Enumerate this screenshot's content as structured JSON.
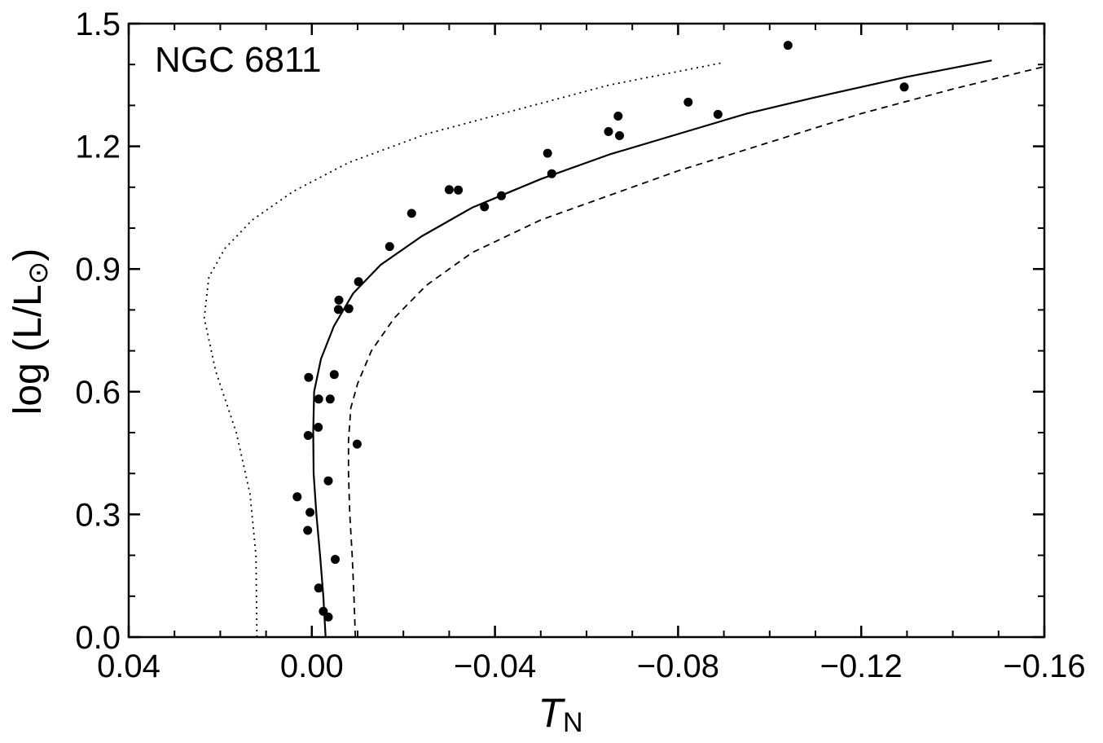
{
  "chart_data": {
    "type": "scatter",
    "panel_label": "NGC 6811",
    "xlabel": {
      "main": "T",
      "sub": "N"
    },
    "ylabel": {
      "prefix": "log (L/L",
      "suffix": ")",
      "sun_symbol": "⊙"
    },
    "xlim": [
      0.04,
      -0.16
    ],
    "ylim": [
      0.0,
      1.5
    ],
    "x_ticks": [
      {
        "value": 0.04,
        "label": "0.04"
      },
      {
        "value": 0.0,
        "label": "0.00"
      },
      {
        "value": -0.04,
        "label": "−0.04"
      },
      {
        "value": -0.08,
        "label": "−0.08"
      },
      {
        "value": -0.12,
        "label": "−0.12"
      },
      {
        "value": -0.16,
        "label": "−0.16"
      }
    ],
    "y_ticks": [
      {
        "value": 0.0,
        "label": "0.0"
      },
      {
        "value": 0.3,
        "label": "0.3"
      },
      {
        "value": 0.6,
        "label": "0.6"
      },
      {
        "value": 0.9,
        "label": "0.9"
      },
      {
        "value": 1.2,
        "label": "1.2"
      },
      {
        "value": 1.5,
        "label": "1.5"
      }
    ],
    "x_minor_step": 0.01,
    "y_minor_step": 0.1,
    "grid": false,
    "series": [
      {
        "kind": "points",
        "marker": "filled-circle",
        "color": "#000000",
        "points": [
          [
            -0.1294,
            1.345
          ],
          [
            -0.104,
            1.447
          ],
          [
            -0.0887,
            1.278
          ],
          [
            -0.0822,
            1.308
          ],
          [
            -0.0669,
            1.274
          ],
          [
            -0.0672,
            1.226
          ],
          [
            -0.0648,
            1.236
          ],
          [
            -0.0524,
            1.133
          ],
          [
            -0.0515,
            1.183
          ],
          [
            -0.0414,
            1.079
          ],
          [
            -0.0377,
            1.052
          ],
          [
            -0.032,
            1.093
          ],
          [
            -0.03,
            1.094
          ],
          [
            -0.0218,
            1.036
          ],
          [
            -0.017,
            0.955
          ],
          [
            -0.0102,
            0.869
          ],
          [
            -0.0081,
            0.803
          ],
          [
            -0.0059,
            0.824
          ],
          [
            -0.0058,
            0.801
          ],
          [
            -0.0049,
            0.642
          ],
          [
            0.0007,
            0.635
          ],
          [
            0.0008,
            0.493
          ],
          [
            -0.0015,
            0.582
          ],
          [
            -0.004,
            0.582
          ],
          [
            -0.0014,
            0.513
          ],
          [
            -0.0099,
            0.472
          ],
          [
            -0.0036,
            0.382
          ],
          [
            0.0032,
            0.343
          ],
          [
            0.0004,
            0.305
          ],
          [
            0.0009,
            0.261
          ],
          [
            -0.0051,
            0.19
          ],
          [
            -0.0015,
            0.12
          ],
          [
            -0.0025,
            0.063
          ],
          [
            -0.0036,
            0.049
          ]
        ]
      },
      {
        "kind": "line",
        "style": "solid",
        "color": "#000000",
        "points": [
          [
            -0.003,
            0.0
          ],
          [
            -0.0025,
            0.1
          ],
          [
            -0.0018,
            0.2
          ],
          [
            -0.001,
            0.3
          ],
          [
            -0.0004,
            0.4
          ],
          [
            -0.0003,
            0.5
          ],
          [
            -0.0005,
            0.6
          ],
          [
            -0.002,
            0.68
          ],
          [
            -0.0048,
            0.76
          ],
          [
            -0.009,
            0.84
          ],
          [
            -0.015,
            0.91
          ],
          [
            -0.024,
            0.98
          ],
          [
            -0.035,
            1.05
          ],
          [
            -0.05,
            1.12
          ],
          [
            -0.065,
            1.18
          ],
          [
            -0.08,
            1.23
          ],
          [
            -0.095,
            1.28
          ],
          [
            -0.11,
            1.32
          ],
          [
            -0.13,
            1.37
          ],
          [
            -0.1485,
            1.41
          ]
        ]
      },
      {
        "kind": "line",
        "style": "dashed",
        "color": "#000000",
        "points": [
          [
            -0.0095,
            0.0
          ],
          [
            -0.0092,
            0.1
          ],
          [
            -0.0088,
            0.2
          ],
          [
            -0.0083,
            0.3
          ],
          [
            -0.008,
            0.4
          ],
          [
            -0.008,
            0.48
          ],
          [
            -0.0085,
            0.56
          ],
          [
            -0.01,
            0.62
          ],
          [
            -0.013,
            0.7
          ],
          [
            -0.018,
            0.78
          ],
          [
            -0.025,
            0.86
          ],
          [
            -0.035,
            0.94
          ],
          [
            -0.05,
            1.02
          ],
          [
            -0.065,
            1.08
          ],
          [
            -0.08,
            1.14
          ],
          [
            -0.1,
            1.21
          ],
          [
            -0.12,
            1.28
          ],
          [
            -0.14,
            1.34
          ],
          [
            -0.16,
            1.395
          ]
        ]
      },
      {
        "kind": "line",
        "style": "dotted",
        "color": "#000000",
        "points": [
          [
            0.012,
            0.0
          ],
          [
            0.0122,
            0.2
          ],
          [
            0.0135,
            0.35
          ],
          [
            0.0165,
            0.5
          ],
          [
            0.021,
            0.65
          ],
          [
            0.0235,
            0.78
          ],
          [
            0.0225,
            0.88
          ],
          [
            0.019,
            0.95
          ],
          [
            0.013,
            1.02
          ],
          [
            0.004,
            1.09
          ],
          [
            -0.008,
            1.16
          ],
          [
            -0.025,
            1.23
          ],
          [
            -0.045,
            1.29
          ],
          [
            -0.065,
            1.35
          ],
          [
            -0.09,
            1.405
          ]
        ]
      }
    ]
  }
}
